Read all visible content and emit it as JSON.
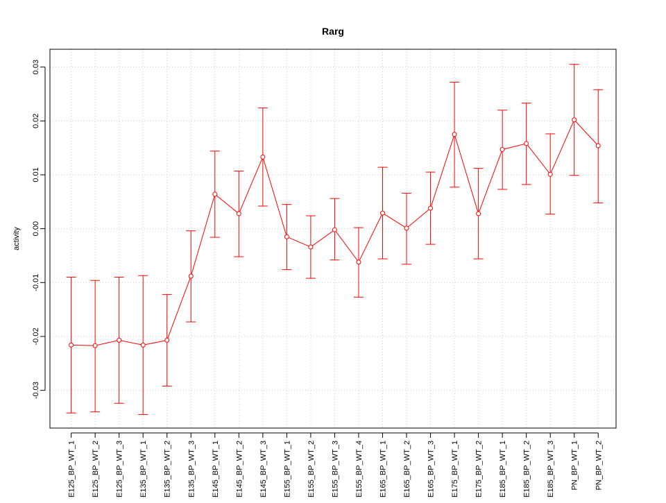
{
  "chart_data": {
    "type": "line",
    "title": "Rarg",
    "xlabel": "",
    "ylabel": "activity",
    "ylim": [
      -0.037,
      0.0333
    ],
    "yticks": [
      -0.03,
      -0.02,
      -0.01,
      0.0,
      0.01,
      0.02,
      0.03
    ],
    "ytick_labels": [
      "-0.03",
      "-0.02",
      "-0.01",
      "0.00",
      "0.01",
      "0.02",
      "0.03"
    ],
    "grid": true,
    "colors": {
      "series": "#ff0000",
      "grid": "#cccccc",
      "axis": "#000000"
    },
    "categories": [
      "E125_BP_WT_1",
      "E125_BP_WT_2",
      "E125_BP_WT_3",
      "E135_BP_WT_1",
      "E135_BP_WT_2",
      "E135_BP_WT_3",
      "E145_BP_WT_1",
      "E145_BP_WT_2",
      "E145_BP_WT_3",
      "E155_BP_WT_1",
      "E155_BP_WT_2",
      "E155_BP_WT_3",
      "E155_BP_WT_4",
      "E165_BP_WT_1",
      "E165_BP_WT_2",
      "E165_BP_WT_3",
      "E175_BP_WT_1",
      "E175_BP_WT_2",
      "E185_BP_WT_1",
      "E185_BP_WT_2",
      "E185_BP_WT_3",
      "PN_BP_WT_1",
      "PN_BP_WT_2"
    ],
    "series": [
      {
        "values": [
          -0.0216,
          -0.0217,
          -0.0207,
          -0.0216,
          -0.0207,
          -0.0088,
          0.0064,
          0.0028,
          0.0133,
          -0.0015,
          -0.0034,
          -0.0002,
          -0.0062,
          0.0029,
          0.0001,
          0.0038,
          0.0175,
          0.0028,
          0.0147,
          0.0158,
          0.0101,
          0.0202,
          0.0154
        ],
        "lower": [
          -0.0342,
          -0.034,
          -0.0324,
          -0.0345,
          -0.0292,
          -0.0173,
          -0.0016,
          -0.0052,
          0.0042,
          -0.0076,
          -0.0092,
          -0.0058,
          -0.0127,
          -0.0056,
          -0.0066,
          -0.0029,
          0.0077,
          -0.0056,
          0.0073,
          0.0082,
          0.0027,
          0.0099,
          0.0048
        ],
        "upper": [
          -0.009,
          -0.0096,
          -0.009,
          -0.0087,
          -0.0122,
          -0.0004,
          0.0144,
          0.0107,
          0.0224,
          0.0045,
          0.0024,
          0.0056,
          0.0002,
          0.0114,
          0.0066,
          0.0105,
          0.0272,
          0.0112,
          0.022,
          0.0233,
          0.0176,
          0.0305,
          0.0258
        ]
      }
    ]
  }
}
